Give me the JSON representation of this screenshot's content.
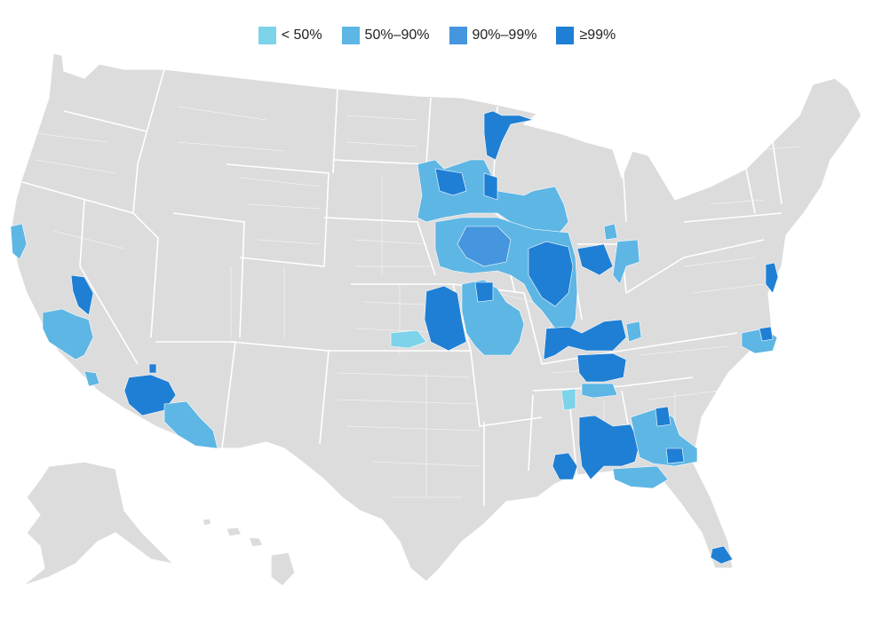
{
  "legend": {
    "items": [
      {
        "label": "< 50%",
        "color": "#7dd3ea"
      },
      {
        "label": "50%–90%",
        "color": "#5eb6e4"
      },
      {
        "label": "90%–99%",
        "color": "#4596de"
      },
      {
        "label": "≥99%",
        "color": "#1f7fd4"
      }
    ]
  },
  "map": {
    "base_color": "#dcdcdc",
    "border_color": "#ffffff",
    "region": "United States (contiguous + Alaska + Hawaii)"
  }
}
